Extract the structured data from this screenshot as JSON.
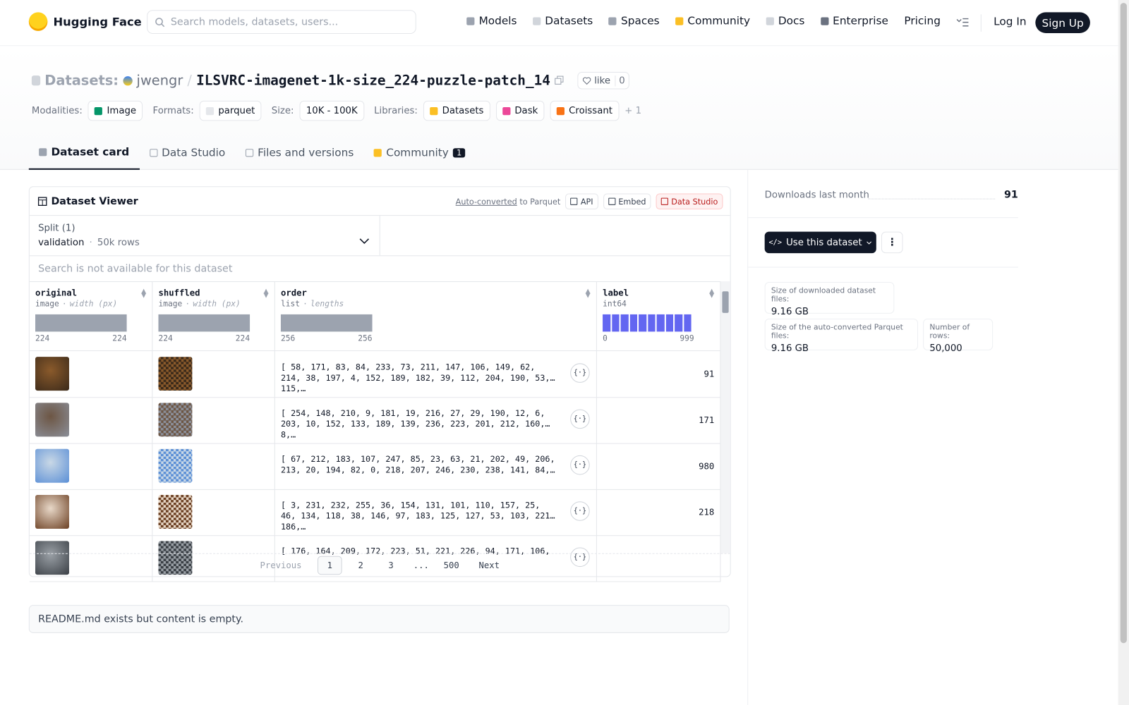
{
  "header": {
    "logo": "Hugging Face",
    "search_placeholder": "Search models, datasets, users...",
    "nav": [
      "Models",
      "Datasets",
      "Spaces",
      "Community",
      "Docs",
      "Enterprise",
      "Pricing"
    ],
    "login": "Log In",
    "signup": "Sign Up"
  },
  "repo": {
    "prefix": "Datasets:",
    "owner": "jwengr",
    "separator": "/",
    "name": "ILSVRC-imagenet-1k-size_224-puzzle-patch_14",
    "like": "like",
    "likes": 0
  },
  "tags": {
    "groups": [
      {
        "label": "Modalities:",
        "items": [
          "Image"
        ]
      },
      {
        "label": "Formats:",
        "items": [
          "parquet"
        ]
      },
      {
        "label": "Size:",
        "items": [
          "10K - 100K"
        ]
      },
      {
        "label": "Libraries:",
        "items": [
          "Datasets",
          "Dask",
          "Croissant"
        ]
      }
    ],
    "more": "+ 1"
  },
  "tabs": {
    "items": [
      "Dataset card",
      "Data Studio",
      "Files and versions",
      "Community"
    ],
    "community_badge": 1
  },
  "viewer": {
    "title": "Dataset Viewer",
    "auto_converted": "Auto-converted",
    "to_parquet": "to Parquet",
    "buttons": [
      "API",
      "Embed",
      "Data Studio"
    ],
    "split_label": "Split (1)",
    "split": "validation",
    "separator": "·",
    "rows_count": "50k rows",
    "search": "Search is not available for this dataset",
    "columns": [
      {
        "name": "original",
        "type": "image",
        "stat": "width (px)",
        "min": 224,
        "max": 224
      },
      {
        "name": "shuffled",
        "type": "image",
        "stat": "width (px)",
        "min": 224,
        "max": 224
      },
      {
        "name": "order",
        "type": "list",
        "stat": "lengths",
        "min": 256,
        "max": 256
      },
      {
        "name": "label",
        "type": "int64",
        "min": 0,
        "max": 999
      }
    ],
    "rows": [
      {
        "order": "[ 58, 171, 83, 84, 233, 73, 211, 147, 106, 149, 62, 214, 38, 197, 4, 152, 189, 182, 39, 112, 204, 190, 53, 115,…",
        "label": 91
      },
      {
        "order": "[ 254, 148, 210, 9, 181, 19, 216, 27, 29, 190, 12, 6, 203, 10, 152, 133, 189, 139, 236, 223, 201, 212, 160, 8,…",
        "label": 171
      },
      {
        "order": "[ 67, 212, 183, 107, 247, 85, 23, 63, 21, 202, 49, 206, 213, 20, 194, 82, 0, 218, 207, 246, 230, 238, 141, 84,…",
        "label": 980
      },
      {
        "order": "[ 3, 231, 232, 255, 36, 154, 131, 101, 110, 157, 25, 46, 134, 118, 38, 146, 97, 183, 125, 127, 53, 103, 221, 186,…",
        "label": 218
      },
      {
        "order": "[ 176, 164, 209, 172, 223, 51, 221, 226, 94, 171, 106,"
      }
    ],
    "pagination": {
      "previous": "Previous",
      "pages": [
        "1",
        "2",
        "3",
        "...",
        "500"
      ],
      "next": "Next"
    }
  },
  "readme": "README.md exists but content is empty.",
  "sidebar": {
    "downloads_label": "Downloads last month",
    "downloads": 91,
    "use_button": "Use this dataset",
    "stats": [
      {
        "label": "Size of downloaded dataset files:",
        "value": "9.16 GB"
      },
      {
        "label": "Size of the auto-converted Parquet files:",
        "value": "9.16 GB"
      },
      {
        "label": "Number of rows:",
        "value": "50,000"
      }
    ]
  }
}
